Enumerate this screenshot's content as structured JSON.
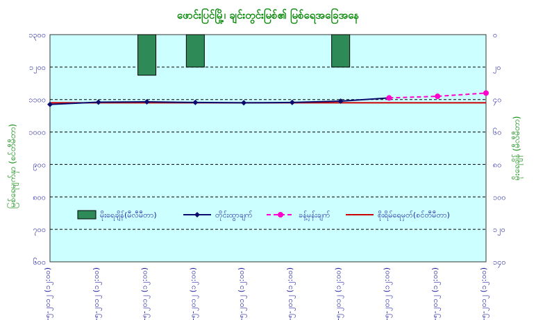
{
  "chart_data": {
    "type": "bar",
    "title": "ဖောင်းပြင်မြို့၊ ချင်းတွင်းမြစ်၏ မြစ်ရေအခြေအနေ",
    "ylabel_left": "မြစ်ရေမျက်နှာ (စင်တီမီတာ)",
    "ylabel_right": "မိုးရေချိန် (မီလီမီတာ)",
    "categories": [
      "၁၃-၅-၂၀၁၂ (၁၂:၀၀)",
      "၁၄-၅-၂၀၁၂ (၁၂:၀၀)",
      "၁၅-၅-၂၀၁၂ (၁၂:၀၀)",
      "၁၆-၅-၂၀၁၂ (၁၂:၀၀)",
      "၁၇-၅-၂၀၁၂ (၁၂:၀၀)",
      "၁၈-၅-၂၀၁၂ (၁၂:၀၀)",
      "၁၉-၅-၂၀၁၂ (၁၂:၀၀)",
      "၂၀-၅-၂၀၁၂ (၁၂:၀၀)",
      "၂၁-၅-၂၀၁၂ (၁၂:၀၀)",
      "၂၂-၅-၂၀၁၂ (၁၂:၀၀)"
    ],
    "left_axis": {
      "min": 600,
      "max": 1300,
      "ticks": [
        "၆၀၀",
        "၇၀၀",
        "၈၀၀",
        "၉၀၀",
        "၁၀၀၀",
        "၁၁၀၀",
        "၁၂၀၀",
        "၁၃၀၀"
      ]
    },
    "right_axis": {
      "min": 0,
      "max": 140,
      "ticks": [
        "၀",
        "၂၀",
        "၄၀",
        "၆၀",
        "၈၀",
        "၁၀၀",
        "၁၂၀",
        "၁၄၀"
      ]
    },
    "series": [
      {
        "name": "မိုးရေချိန်(မီလီမီတာ)",
        "kind": "bar",
        "axis": "right",
        "color": "#2e8b57",
        "values": [
          0,
          0,
          25,
          20,
          0,
          0,
          20,
          0,
          0,
          0
        ],
        "display": [
          0,
          0,
          25,
          20,
          0,
          0,
          20,
          0,
          0,
          0
        ]
      },
      {
        "name": "တိုင်းထွာချက်",
        "kind": "line",
        "axis": "left",
        "color": "#0b0b6e",
        "values": [
          1085,
          1092,
          1093,
          1091,
          1090,
          1091,
          1095,
          1105,
          null,
          null
        ]
      },
      {
        "name": "ခန့်မှန်းချက်",
        "kind": "line",
        "axis": "left",
        "color": "#ff00cc",
        "dashed": true,
        "values": [
          null,
          null,
          null,
          null,
          null,
          null,
          null,
          1105,
          1110,
          1120
        ]
      },
      {
        "name": "စိုးရိမ်ရေမှတ်(စင်တီမီတာ)",
        "kind": "hline",
        "axis": "left",
        "color": "#cc0000",
        "value": 1090
      }
    ],
    "grid": true,
    "legend": "bottom-center",
    "plot_bg": "#ccffff"
  }
}
